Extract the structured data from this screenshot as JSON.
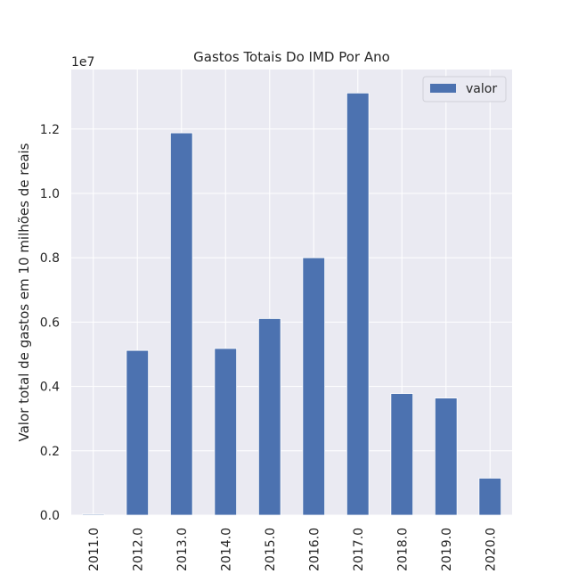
{
  "chart_data": {
    "type": "bar",
    "title": "Gastos Totais Do IMD Por Ano",
    "xlabel": "",
    "ylabel": "Valor total de gastos em 10 milhões de reais",
    "y_offset_label": "1e7",
    "y_ticks": [
      "0.0",
      "0.2",
      "0.4",
      "0.6",
      "0.8",
      "1.0",
      "1.2"
    ],
    "ylim": [
      0,
      1.385
    ],
    "grid": true,
    "legend_position": "top-right",
    "categories": [
      "2011.0",
      "2012.0",
      "2013.0",
      "2014.0",
      "2015.0",
      "2016.0",
      "2017.0",
      "2018.0",
      "2019.0",
      "2020.0"
    ],
    "series": [
      {
        "name": "valor",
        "color": "#4c72b0",
        "values": [
          0.003,
          0.512,
          1.188,
          0.518,
          0.611,
          0.8,
          1.312,
          0.378,
          0.364,
          0.115
        ]
      }
    ]
  }
}
